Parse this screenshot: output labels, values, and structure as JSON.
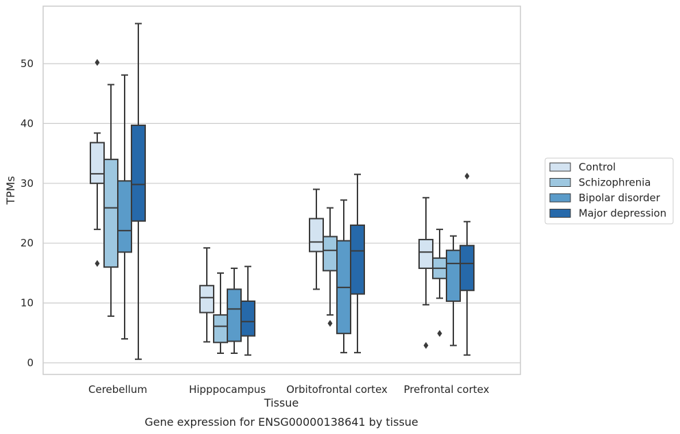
{
  "chart_data": {
    "type": "box",
    "caption": "Gene expression for ENSG00000138641 by tissue",
    "xlabel": "Tissue",
    "ylabel": "TPMs",
    "ylim": [
      -2,
      60
    ],
    "yticks": [
      0,
      10,
      20,
      30,
      40,
      50
    ],
    "grid": "horizontal",
    "legend_position": "outside-right",
    "categories": [
      "Cerebellum",
      "Hipppocampus",
      "Orbitofrontal cortex",
      "Prefrontal cortex"
    ],
    "series": [
      {
        "name": "Control",
        "color": "#d3e3f1",
        "boxes": [
          {
            "whisker_low": 22.3,
            "q1": 30.0,
            "median": 31.6,
            "q3": 36.8,
            "whisker_high": 38.4,
            "outliers": [
              50.2,
              16.6
            ]
          },
          {
            "whisker_low": 3.5,
            "q1": 8.4,
            "median": 10.9,
            "q3": 12.9,
            "whisker_high": 19.2,
            "outliers": []
          },
          {
            "whisker_low": 12.3,
            "q1": 18.6,
            "median": 20.2,
            "q3": 24.1,
            "whisker_high": 29.0,
            "outliers": []
          },
          {
            "whisker_low": 9.7,
            "q1": 15.8,
            "median": 18.5,
            "q3": 20.6,
            "whisker_high": 27.6,
            "outliers": [
              2.9
            ]
          }
        ]
      },
      {
        "name": "Schizophrenia",
        "color": "#9dc7e0",
        "boxes": [
          {
            "whisker_low": 7.8,
            "q1": 16.0,
            "median": 25.9,
            "q3": 34.0,
            "whisker_high": 46.5,
            "outliers": []
          },
          {
            "whisker_low": 1.6,
            "q1": 3.4,
            "median": 6.1,
            "q3": 8.0,
            "whisker_high": 15.0,
            "outliers": []
          },
          {
            "whisker_low": 8.0,
            "q1": 15.4,
            "median": 18.8,
            "q3": 21.1,
            "whisker_high": 25.9,
            "outliers": [
              6.6
            ]
          },
          {
            "whisker_low": 10.8,
            "q1": 14.1,
            "median": 15.8,
            "q3": 17.5,
            "whisker_high": 22.3,
            "outliers": [
              4.9
            ]
          }
        ]
      },
      {
        "name": "Bipolar disorder",
        "color": "#5a9bc9",
        "boxes": [
          {
            "whisker_low": 4.0,
            "q1": 18.5,
            "median": 22.1,
            "q3": 30.4,
            "whisker_high": 48.1,
            "outliers": []
          },
          {
            "whisker_low": 1.6,
            "q1": 3.6,
            "median": 9.0,
            "q3": 12.3,
            "whisker_high": 15.8,
            "outliers": []
          },
          {
            "whisker_low": 1.7,
            "q1": 4.9,
            "median": 12.6,
            "q3": 20.4,
            "whisker_high": 27.2,
            "outliers": []
          },
          {
            "whisker_low": 2.9,
            "q1": 10.3,
            "median": 16.6,
            "q3": 18.8,
            "whisker_high": 21.2,
            "outliers": []
          }
        ]
      },
      {
        "name": "Major depression",
        "color": "#2669aa",
        "boxes": [
          {
            "whisker_low": 0.6,
            "q1": 23.7,
            "median": 29.8,
            "q3": 39.7,
            "whisker_high": 56.7,
            "outliers": []
          },
          {
            "whisker_low": 1.3,
            "q1": 4.5,
            "median": 6.9,
            "q3": 10.3,
            "whisker_high": 16.1,
            "outliers": []
          },
          {
            "whisker_low": 1.7,
            "q1": 11.5,
            "median": 18.7,
            "q3": 23.0,
            "whisker_high": 31.5,
            "outliers": []
          },
          {
            "whisker_low": 1.3,
            "q1": 12.1,
            "median": 16.6,
            "q3": 19.6,
            "whisker_high": 23.6,
            "outliers": [
              31.2
            ]
          }
        ]
      }
    ]
  }
}
